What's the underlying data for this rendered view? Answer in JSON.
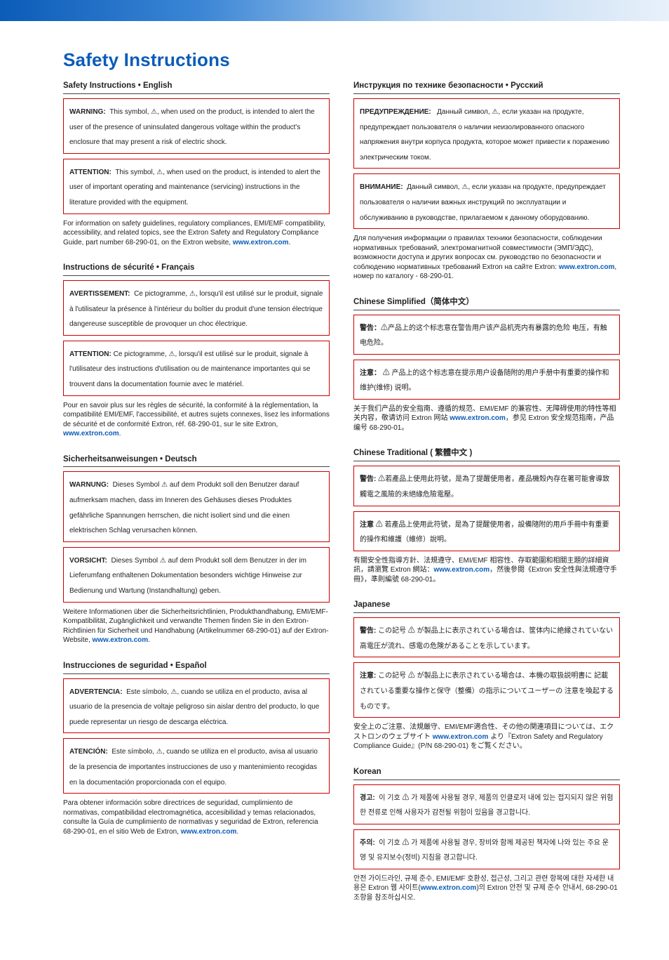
{
  "colors": {
    "accent": "#0b5cb8",
    "boxBorder": "#c00",
    "text": "#222",
    "link": "#0b5cb8",
    "topGradient": [
      "#0b5cb8",
      "#3b86d6",
      "#b8d4f0",
      "#e8f1fa"
    ]
  },
  "title": "Safety Instructions",
  "linkText": "www.extron.com",
  "en": {
    "heading": "Safety Instructions • English",
    "warnLabel": "WARNING:",
    "warnText": "This symbol, ⚠, when used on the product, is intended to alert the user of the presence of uninsulated dangerous voltage within the product's enclosure that may present a risk of electric shock.",
    "attnLabel": "ATTENTION:",
    "attnText": "This symbol, ⚠, when used on the product, is intended to alert the user of important operating and maintenance (servicing) instructions in the literature provided with the equipment.",
    "para": "For information on safety guidelines, regulatory compliances, EMI/EMF compatibility, accessibility, and related topics, see the Extron Safety and Regulatory Compliance Guide, part number 68-290-01, on the Extron website, "
  },
  "fr": {
    "heading": "Instructions de sécurité • Français",
    "warnLabel": "AVERTISSEMENT:",
    "warnText": "Ce pictogramme, ⚠, lorsqu'il est utilisé sur le produit, signale à l'utilisateur la présence à l'intérieur du boîtier du produit d'une tension électrique dangereuse susceptible de provoquer un choc électrique.",
    "attnLabel": "ATTENTION:",
    "attnText": "Ce pictogramme, ⚠, lorsqu'il est utilisé sur le produit, signale à l'utilisateur des instructions d'utilisation ou de maintenance importantes qui se trouvent dans la documentation fournie avec le matériel.",
    "para": "Pour en savoir plus sur les règles de sécurité, la conformité à la réglementation, la compatibilité EMI/EMF, l'accessibilité, et autres sujets connexes, lisez les informations de sécurité et de conformité Extron, réf. 68-290-01, sur le site Extron, "
  },
  "de": {
    "heading": "Sicherheitsanweisungen • Deutsch",
    "warnLabel": "WARNUNG:",
    "warnText": "Dieses Symbol ⚠ auf dem Produkt soll den Benutzer darauf aufmerksam machen, dass im Inneren des Gehäuses dieses Produktes gefährliche Spannungen herrschen, die nicht isoliert sind und die einen elektrischen Schlag verursachen können.",
    "attnLabel": "VORSICHT:",
    "attnText": "Dieses Symbol ⚠ auf dem Produkt soll dem Benutzer in der im Lieferumfang enthaltenen Dokumentation besonders wichtige Hinweise zur Bedienung und Wartung (Instandhaltung) geben.",
    "paraA": "Weitere Informationen über die Sicherheitsrichtlinien, Produkthandhabung, EMI/EMF-Kompatibilität, Zugänglichkeit und verwandte Themen finden Sie in den Extron-Richtlinien für Sicherheit und Handhabung  (Artikelnummer 68-290-01) auf der Extron-Website, ",
    "paraB": "."
  },
  "es": {
    "heading": "Instrucciones de seguridad • Español",
    "warnLabel": "ADVERTENCIA:",
    "warnText": "Este símbolo, ⚠, cuando se utiliza en el producto, avisa al usuario de la presencia de voltaje peligroso sin aislar dentro del producto, lo que puede representar un riesgo de descarga eléctrica.",
    "attnLabel": "ATENCIÓN:",
    "attnText": "Este símbolo, ⚠, cuando se utiliza en el producto, avisa al usuario de la presencia de importantes instrucciones de uso y mantenimiento recogidas en la documentación proporcionada con el equipo.",
    "paraA": "Para obtener información sobre directrices de seguridad, cumplimiento de normativas,  compatibilidad electromagnética, accesibilidad y temas relacionados, consulte la  Guía de cumplimiento de normativas y seguridad de Extron, referencia 68-290-01, en el sitio Web de Extron, ",
    "paraB": "."
  },
  "ru": {
    "heading": "Инструкция по технике безопасности • Русский",
    "warnLabel": "ПРЕДУПРЕЖДЕНИЕ:",
    "warnText": "Данный символ, ⚠, если указан на продукте, предупреждает пользователя о наличии неизолированного опасного напряжения внутри корпуса продукта, которое может привести к поражению электрическим током.",
    "attnLabel": "ВНИМАНИЕ:",
    "attnText": "Данный символ, ⚠, если указан на продукте, предупреждает пользователя о наличии важных инструкций по эксплуатации и обслуживанию в руководстве, прилагаемом к данному оборудованию.",
    "paraA": "Для получения информации о правилах техники безопасности, соблюдении нормативных требований, электромагнитной совместимости (ЭМП/ЭДС), возможности доступа и других вопросах см. руководство по безопасности и соблюдению нормативных требований Extron на сайте Extron: ",
    "paraB": ", номер по каталогу - 68-290-01."
  },
  "zhs": {
    "heading": "Chinese Simplified（简体中文）",
    "warnLabel": "警告：",
    "warnText": "⚠产品上的这个标志意在警告用户该产品机壳内有暴露的危险 电压，有触电危险。",
    "attnLabel": "注意：",
    "attnText": "⚠ 产品上的这个标志意在提示用户设备随附的用户手册中有重要的操作和维护(维修) 说明。",
    "paraA": "关于我们产品的安全指南、遵循的规范、EMI/EMF 的兼容性、无障碍使用的特性等相关内容，敬请访问 Extron 网站 ",
    "paraB": "，参见 Extron 安全规范指南，产品编号 68-290-01。"
  },
  "zht": {
    "heading": "Chinese Traditional ( 繁體中文 )",
    "warnLabel": "警告:",
    "warnText": "⚠若產品上使用此符號，是為了提醒使用者，產品機殼內存在著可能會導致觸電之風險的未絕緣危險電壓。",
    "attnLabel": "注意",
    "attnText": "⚠ 若產品上使用此符號，是為了提醒使用者，設備隨附的用戶手冊中有重要的操作和維護（維修）說明。",
    "paraA": "有關安全性指導方針、法規遵守、EMI/EMF 相容性、存取範圍和相關主題的詳細資訊，請瀏覽 Extron 網站：",
    "paraB": "，然後參閱《Extron 安全性與法規遵守手冊》，準則編號 68-290-01。"
  },
  "ja": {
    "heading": "Japanese",
    "warnLabel": "警告:",
    "warnText": "この記号 ⚠ が製品上に表示されている場合は、筐体内に絶縁されていない高電圧が流れ、感電の危険があることを示しています。",
    "attnLabel": "注意:",
    "attnText": "この記号 ⚠ が製品上に表示されている場合は、本機の取扱説明書に 記載されている重要な操作と保守（整備）の指示についてユーザーの 注意を喚起するものです。",
    "paraA": "安全上のご注意、法規厳守、EMI/EMF適合性、その他の関連項目については、エクストロンのウェブサイト ",
    "paraB": " より『Extron Safety and Regulatory Compliance Guide』(P/N 68-290-01) をご覧ください。"
  },
  "ko": {
    "heading": "Korean",
    "warnLabel": "경고:",
    "warnText": "이 기호 ⚠ 가 제품에 사용될 경우, 제품의 인클로저 내에 있는 접지되지 않은 위험한 전류로 인해 사용자가 감전될 위험이 있음을 경고합니다.",
    "attnLabel": "주의:",
    "attnText": "이 기호 ⚠ 가 제품에 사용될 경우, 장비와 함께 제공된 책자에 나와 있는 주요 운영 및 유지보수(정비) 지침을 경고합니다.",
    "paraA": "안전 가이드라인, 규제 준수, EMI/EMF 호환성, 접근성, 그리고 관련 항목에 대한 자세한 내용은 Extron 웹 사이트(",
    "paraB": ")의 Extron 안전 및 규제 준수 안내서, 68-290-01 조항을 참조하십시오."
  }
}
